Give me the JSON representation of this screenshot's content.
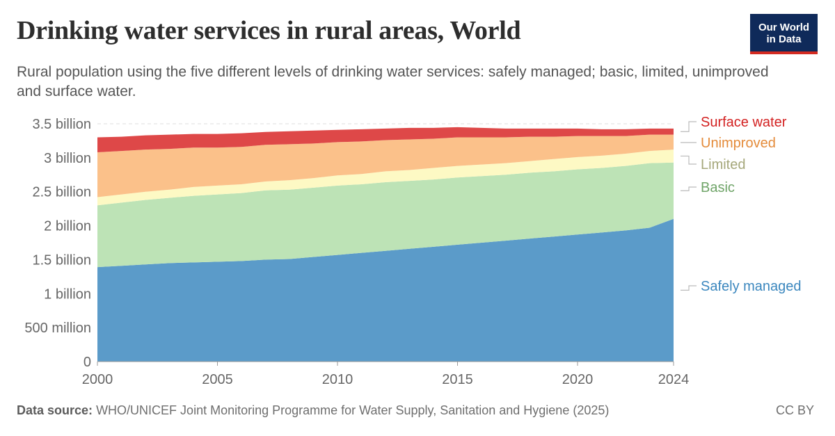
{
  "title": "Drinking water services in rural areas, World",
  "subtitle": "Rural population using the five different levels of drinking water services: safely managed; basic, limited, unimproved and surface water.",
  "logo": {
    "line1": "Our World",
    "line2": "in Data"
  },
  "footer": {
    "source_label": "Data source:",
    "source_text": "WHO/UNICEF Joint Monitoring Programme for Water Supply, Sanitation and Hygiene (2025)",
    "license": "CC BY"
  },
  "chart_data": {
    "type": "area",
    "stacked": true,
    "x": [
      2000,
      2001,
      2002,
      2003,
      2004,
      2005,
      2006,
      2007,
      2008,
      2009,
      2010,
      2011,
      2012,
      2013,
      2014,
      2015,
      2016,
      2017,
      2018,
      2019,
      2020,
      2021,
      2022,
      2023,
      2024
    ],
    "xticks": [
      2000,
      2005,
      2010,
      2015,
      2020,
      2024
    ],
    "xtick_labels": [
      "2000",
      "2005",
      "2010",
      "2015",
      "2020",
      "2024"
    ],
    "yticks": [
      0,
      0.5,
      1,
      1.5,
      2,
      2.5,
      3,
      3.5
    ],
    "ytick_labels": [
      "0",
      "500 million",
      "1 billion",
      "1.5 billion",
      "2 billion",
      "2.5 billion",
      "3 billion",
      "3.5 billion"
    ],
    "ylim": [
      0,
      3.5
    ],
    "unit": "billion",
    "grid": "horizontal dashed",
    "legend_placement": "right, inline labels",
    "series": [
      {
        "name": "Safely managed",
        "color": "#5b9bc9",
        "label_color": "#3b87be",
        "values": [
          1.39,
          1.41,
          1.43,
          1.45,
          1.46,
          1.47,
          1.48,
          1.5,
          1.51,
          1.54,
          1.57,
          1.6,
          1.63,
          1.66,
          1.69,
          1.72,
          1.75,
          1.78,
          1.81,
          1.84,
          1.87,
          1.9,
          1.93,
          1.97,
          2.1
        ]
      },
      {
        "name": "Basic",
        "color": "#bde3b6",
        "label_color": "#6fa468",
        "values": [
          0.91,
          0.93,
          0.95,
          0.96,
          0.98,
          0.99,
          1.0,
          1.02,
          1.02,
          1.02,
          1.02,
          1.01,
          1.01,
          1.0,
          0.99,
          0.99,
          0.98,
          0.97,
          0.97,
          0.96,
          0.96,
          0.95,
          0.95,
          0.95,
          0.83
        ]
      },
      {
        "name": "Limited",
        "color": "#fdf9c4",
        "label_color": "#a5a77a",
        "values": [
          0.12,
          0.12,
          0.12,
          0.12,
          0.13,
          0.13,
          0.13,
          0.13,
          0.14,
          0.14,
          0.15,
          0.15,
          0.16,
          0.16,
          0.17,
          0.17,
          0.17,
          0.17,
          0.17,
          0.18,
          0.18,
          0.18,
          0.18,
          0.18,
          0.19
        ]
      },
      {
        "name": "Unimproved",
        "color": "#fbc18a",
        "label_color": "#e48b3a",
        "values": [
          0.66,
          0.64,
          0.62,
          0.6,
          0.58,
          0.56,
          0.55,
          0.54,
          0.53,
          0.51,
          0.49,
          0.48,
          0.46,
          0.45,
          0.43,
          0.42,
          0.4,
          0.38,
          0.36,
          0.33,
          0.31,
          0.29,
          0.26,
          0.24,
          0.22
        ]
      },
      {
        "name": "Surface water",
        "color": "#de4848",
        "label_color": "#d32121",
        "values": [
          0.22,
          0.21,
          0.21,
          0.21,
          0.2,
          0.2,
          0.2,
          0.19,
          0.19,
          0.19,
          0.18,
          0.18,
          0.17,
          0.17,
          0.16,
          0.15,
          0.14,
          0.13,
          0.12,
          0.12,
          0.11,
          0.1,
          0.1,
          0.09,
          0.09
        ]
      }
    ]
  }
}
